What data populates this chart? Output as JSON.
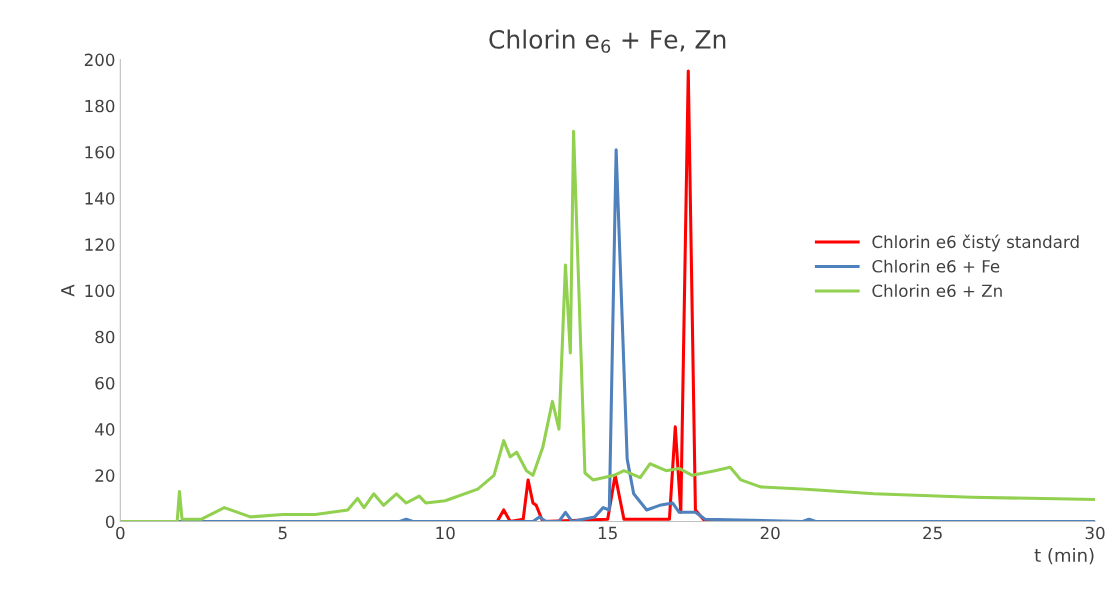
{
  "chart_data": {
    "type": "line",
    "title": "Chlorin e$_{6}$ + Fe, Zn",
    "xlabel": "t (min)",
    "ylabel": "A",
    "xlim": [
      0,
      30
    ],
    "ylim": [
      0,
      200
    ],
    "xticks": [
      0,
      5,
      10,
      15,
      20,
      25,
      30
    ],
    "yticks": [
      0,
      20,
      40,
      60,
      80,
      100,
      120,
      140,
      160,
      180,
      200
    ],
    "grid": false,
    "legend": "right",
    "marker": "none",
    "line_style": "solid",
    "series": [
      {
        "name": "Chlorin e6 čistý standard",
        "color": "#ff0000",
        "x": [
          0,
          11.6,
          11.8,
          12.0,
          12.4,
          12.55,
          12.7,
          12.8,
          13.0,
          15.0,
          15.23,
          15.5,
          16.9,
          17.08,
          17.25,
          17.48,
          17.7,
          18.0,
          30
        ],
        "values": [
          0,
          0,
          5,
          0,
          1,
          18,
          8,
          7,
          0,
          1,
          20,
          1,
          1,
          41,
          4,
          195,
          5,
          0,
          0
        ]
      },
      {
        "name": "Chlorin e6 + Fe",
        "color": "#4f81bd",
        "x": [
          0,
          8.6,
          8.8,
          9.0,
          12.7,
          12.9,
          13.1,
          13.5,
          13.7,
          13.9,
          14.6,
          14.86,
          15.05,
          15.26,
          15.6,
          15.8,
          16.2,
          16.6,
          17.0,
          17.2,
          17.7,
          18.0,
          21.0,
          21.2,
          21.4,
          30
        ],
        "values": [
          0,
          0,
          1,
          0,
          0,
          2,
          0,
          0,
          4,
          0,
          2,
          6,
          5,
          161,
          27,
          12,
          5,
          7,
          8,
          4,
          4,
          1,
          0,
          1,
          0,
          0
        ]
      },
      {
        "name": "Chlorin e6 + Zn",
        "color": "#92d050",
        "x": [
          0,
          1.75,
          1.82,
          1.9,
          2.5,
          3.2,
          4.0,
          5.0,
          6.0,
          7.0,
          7.3,
          7.5,
          7.8,
          8.1,
          8.5,
          8.8,
          9.2,
          9.4,
          10.0,
          11.0,
          11.5,
          11.8,
          12.0,
          12.2,
          12.5,
          12.7,
          13.0,
          13.3,
          13.5,
          13.7,
          13.85,
          13.95,
          14.3,
          14.55,
          15.2,
          15.5,
          16.0,
          16.3,
          16.8,
          17.2,
          17.6,
          18.3,
          18.77,
          19.1,
          19.7,
          21.1,
          23.2,
          26.2,
          30
        ],
        "values": [
          0,
          0,
          13,
          1,
          1,
          6,
          2,
          3,
          3,
          5,
          10,
          6,
          12,
          7,
          12,
          8,
          11,
          8,
          9,
          14,
          20,
          35,
          28,
          30,
          22,
          20,
          32,
          52,
          40,
          111,
          73,
          169,
          21,
          18,
          20,
          22,
          19,
          25,
          22,
          23,
          20,
          22,
          23.5,
          18,
          15,
          14,
          12,
          10.5,
          9.5
        ]
      }
    ]
  }
}
